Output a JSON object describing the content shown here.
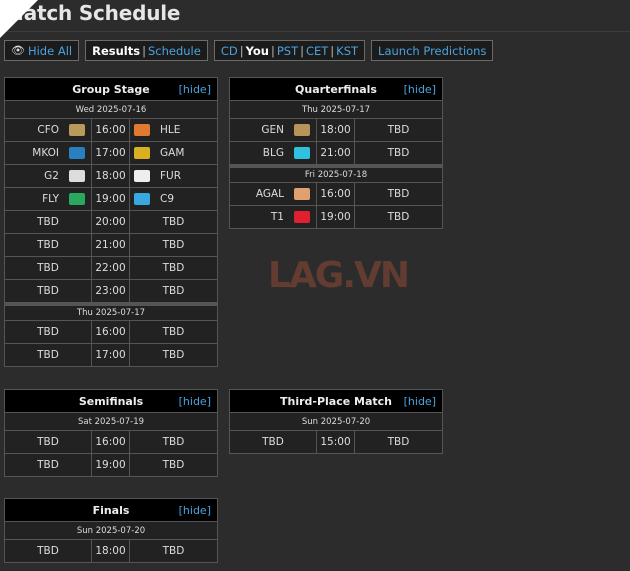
{
  "title": "Match Schedule",
  "toolbar": {
    "hide_all": "Hide All",
    "results": "Results",
    "schedule": "Schedule",
    "tz": [
      "CD",
      "You",
      "PST",
      "CET",
      "KST"
    ],
    "tz_selected": "You",
    "launch": "Launch Predictions"
  },
  "hide_label": "[hide]",
  "watermark": "LAG.VN",
  "colors": {
    "link": "#4aa3df",
    "header_bg": "#000000",
    "row_bg": "#222222"
  },
  "tables": [
    {
      "id": "group-stage",
      "title": "Group Stage",
      "days": [
        {
          "date": "Wed 2025-07-16",
          "matches": [
            {
              "t1": "CFO",
              "l1": "#b89a5a",
              "time": "16:00",
              "t2": "HLE",
              "l2": "#e07a30"
            },
            {
              "t1": "MKOI",
              "l1": "#2a7fc0",
              "time": "17:00",
              "t2": "GAM",
              "l2": "#d8b020"
            },
            {
              "t1": "G2",
              "l1": "#dddddd",
              "time": "18:00",
              "t2": "FUR",
              "l2": "#eeeeee"
            },
            {
              "t1": "FLY",
              "l1": "#2aa860",
              "time": "19:00",
              "t2": "C9",
              "l2": "#3aa8e0"
            },
            {
              "t1": "TBD",
              "time": "20:00",
              "t2": "TBD"
            },
            {
              "t1": "TBD",
              "time": "21:00",
              "t2": "TBD"
            },
            {
              "t1": "TBD",
              "time": "22:00",
              "t2": "TBD"
            },
            {
              "t1": "TBD",
              "time": "23:00",
              "t2": "TBD"
            }
          ]
        },
        {
          "date": "Thu 2025-07-17",
          "matches": [
            {
              "t1": "TBD",
              "time": "16:00",
              "t2": "TBD"
            },
            {
              "t1": "TBD",
              "time": "17:00",
              "t2": "TBD"
            }
          ]
        }
      ]
    },
    {
      "id": "quarterfinals",
      "title": "Quarterfinals",
      "days": [
        {
          "date": "Thu 2025-07-17",
          "matches": [
            {
              "t1": "GEN",
              "l1": "#b8945a",
              "time": "18:00",
              "t2": "TBD"
            },
            {
              "t1": "BLG",
              "l1": "#30c0e0",
              "time": "21:00",
              "t2": "TBD"
            }
          ]
        },
        {
          "date": "Fri 2025-07-18",
          "matches": [
            {
              "t1": "AGAL",
              "l1": "#e0a070",
              "time": "16:00",
              "t2": "TBD"
            },
            {
              "t1": "T1",
              "l1": "#e02030",
              "time": "19:00",
              "t2": "TBD"
            }
          ]
        }
      ]
    },
    {
      "id": "semifinals",
      "title": "Semifinals",
      "days": [
        {
          "date": "Sat 2025-07-19",
          "matches": [
            {
              "t1": "TBD",
              "time": "16:00",
              "t2": "TBD"
            },
            {
              "t1": "TBD",
              "time": "19:00",
              "t2": "TBD"
            }
          ]
        }
      ]
    },
    {
      "id": "third-place-match",
      "title": "Third-Place Match",
      "days": [
        {
          "date": "Sun 2025-07-20",
          "matches": [
            {
              "t1": "TBD",
              "time": "15:00",
              "t2": "TBD"
            }
          ]
        }
      ]
    },
    {
      "id": "finals",
      "title": "Finals",
      "days": [
        {
          "date": "Sun 2025-07-20",
          "matches": [
            {
              "t1": "TBD",
              "time": "18:00",
              "t2": "TBD"
            }
          ]
        }
      ]
    }
  ]
}
